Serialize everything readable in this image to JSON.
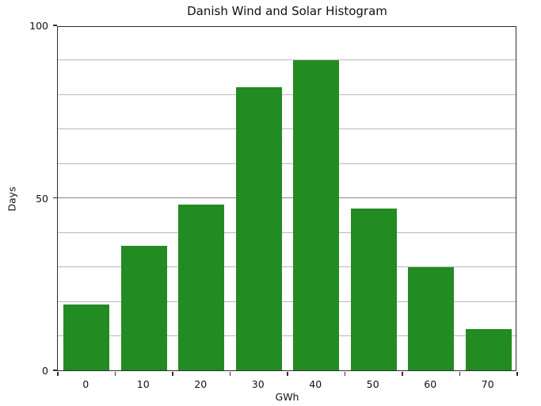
{
  "chart_data": {
    "type": "bar",
    "title": "Danish Wind and Solar Histogram",
    "xlabel": "GWh",
    "ylabel": "Days",
    "categories": [
      "0",
      "10",
      "20",
      "30",
      "40",
      "50",
      "60",
      "70"
    ],
    "values": [
      19,
      36,
      48,
      82,
      90,
      47,
      30,
      12
    ],
    "ylim": [
      0,
      100
    ],
    "yticks": [
      {
        "value": 0,
        "label": "0"
      },
      {
        "value": 50,
        "label": "50"
      },
      {
        "value": 100,
        "label": "100"
      }
    ],
    "grid": {
      "on": true,
      "minor_step": 10,
      "major_step": 50
    },
    "legend": "none",
    "bar_color": "#228B22",
    "bar_fraction": 0.8,
    "axis_color": "#2e2e2e",
    "minor_grid_color": "#b9b9b9",
    "major_grid_color": "#868686"
  }
}
